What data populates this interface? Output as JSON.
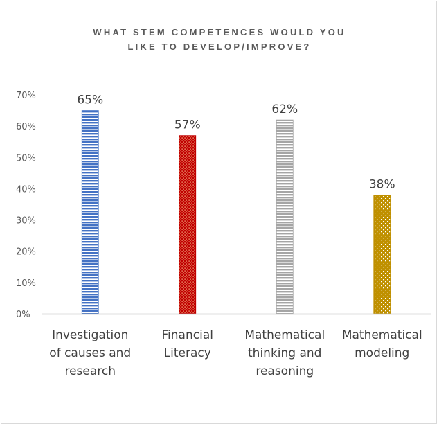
{
  "chart_data": {
    "type": "bar",
    "title_lines": [
      "WHAT STEM COMPETENCES WOULD YOU",
      "LIKE TO DEVELOP/IMPROVE?"
    ],
    "categories": [
      [
        "Investigation",
        "of causes and",
        "research"
      ],
      [
        "Financial",
        "Literacy"
      ],
      [
        "Mathematical",
        "thinking and",
        "reasoning"
      ],
      [
        "Mathematical",
        "modeling"
      ]
    ],
    "values": [
      65,
      57,
      62,
      38
    ],
    "data_labels": [
      "65%",
      "57%",
      "62%",
      "38%"
    ],
    "bar_colors": [
      "#4472c4",
      "#c00000",
      "#a5a5a5",
      "#bf9000"
    ],
    "bar_patterns": [
      "horizontal-stripes",
      "dots-dense",
      "horizontal-stripes",
      "dots-sparse"
    ],
    "ylim": [
      0,
      70
    ],
    "yticks": [
      "0%",
      "10%",
      "20%",
      "30%",
      "40%",
      "50%",
      "60%",
      "70%"
    ],
    "grid": false,
    "legend": "none"
  }
}
